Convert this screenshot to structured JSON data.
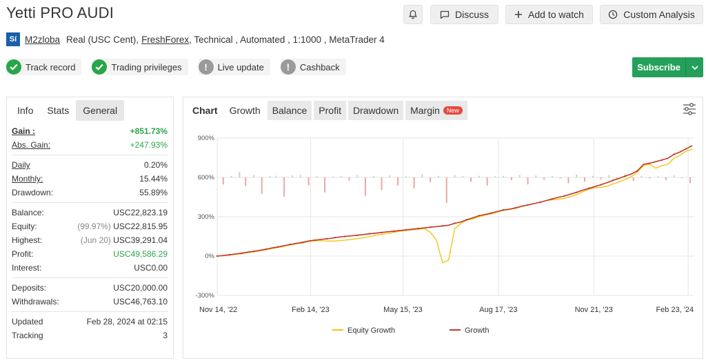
{
  "header": {
    "title": "Yetti PRO AUDI",
    "discuss_label": "Discuss",
    "watch_label": "Add to watch",
    "custom_label": "Custom Analysis",
    "icons": {
      "bell": "bell-icon",
      "discuss": "chat-icon",
      "watch": "plus-icon",
      "custom": "clock-icon"
    }
  },
  "account": {
    "avatar_text": "Sí",
    "user": "M2zloba",
    "type": "Real (USC Cent),",
    "broker": "FreshForex",
    "details": ", Technical , Automated , 1:1000 , MetaTrader 4"
  },
  "badges": [
    {
      "label": "Track record",
      "state": "ok"
    },
    {
      "label": "Trading privileges",
      "state": "ok"
    },
    {
      "label": "Live update",
      "state": "off"
    },
    {
      "label": "Cashback",
      "state": "off"
    }
  ],
  "subscribe_label": "Subscribe",
  "left_tabs": [
    "Info",
    "Stats",
    "General"
  ],
  "stats": {
    "gain": {
      "label": "Gain :",
      "value": "+851.73%"
    },
    "abs_gain": {
      "label": "Abs. Gain:",
      "value": "+247.93%"
    },
    "daily": {
      "label": "Daily",
      "value": "0.20%"
    },
    "monthly": {
      "label": "Monthly:",
      "value": "15.44%"
    },
    "drawdown": {
      "label": "Drawdown:",
      "value": "55.89%"
    },
    "balance": {
      "label": "Balance:",
      "value": "USC22,823.19"
    },
    "equity": {
      "label": "Equity:",
      "note": "(99.97%)",
      "value": "USC22,815.95"
    },
    "highest": {
      "label": "Highest:",
      "note": "(Jun 20)",
      "value": "USC39,291.04"
    },
    "profit": {
      "label": "Profit:",
      "value": "USC49,586.29"
    },
    "interest": {
      "label": "Interest:",
      "value": "USC0.00"
    },
    "deposits": {
      "label": "Deposits:",
      "value": "USC20,000.00"
    },
    "withdrawals": {
      "label": "Withdrawals:",
      "value": "USC46,763.10"
    },
    "updated": {
      "label": "Updated",
      "value": "Feb 28, 2024 at 02:15"
    },
    "tracking": {
      "label": "Tracking",
      "value": "3"
    }
  },
  "chart_tabs": {
    "chart": "Chart",
    "items": [
      "Growth",
      "Balance",
      "Profit",
      "Drawdown",
      "Margin"
    ],
    "new_badge": "New"
  },
  "chart_data": {
    "type": "line",
    "y_ticks": [
      "900%",
      "600%",
      "300%",
      "0%",
      "-300%"
    ],
    "ylim": [
      -300,
      900
    ],
    "x_ticks": [
      "Nov 14, '22",
      "Feb 14, '23",
      "May 15, '23",
      "Aug 17, '23",
      "Nov 21, '23",
      "Feb 23, '24"
    ],
    "grid": true,
    "legend_position": "bottom",
    "colors": {
      "equity": "#f2c511",
      "growth": "#c0392b",
      "bar_pos": "#b9dfb0",
      "bar_neg": "#e8a7a7"
    },
    "series": [
      {
        "name": "Equity Growth",
        "x": [
          0,
          6,
          12,
          18,
          24,
          30,
          36,
          42,
          48,
          54,
          60,
          66,
          72,
          78,
          84,
          90,
          96,
          102,
          108,
          113,
          116,
          120,
          126,
          132,
          138,
          144,
          150,
          156,
          162,
          168,
          174,
          180,
          186,
          192,
          198,
          204,
          210,
          216,
          222,
          228,
          234,
          240,
          246,
          252,
          258,
          264,
          270,
          276,
          282,
          288,
          294,
          300,
          306,
          312,
          318,
          324,
          330,
          336,
          342,
          348,
          354,
          360,
          366,
          372,
          378,
          384,
          390,
          396,
          402,
          408,
          414,
          420,
          426,
          432,
          438,
          444,
          450,
          456,
          462,
          468
        ],
        "y": [
          0,
          3,
          8,
          13,
          18,
          26,
          32,
          40,
          48,
          58,
          66,
          75,
          85,
          93,
          100,
          111,
          117,
          118,
          115,
          115,
          114,
          118,
          122,
          127,
          133,
          140,
          148,
          160,
          165,
          172,
          180,
          190,
          196,
          200,
          205,
          210,
          182,
          122,
          -50,
          -30,
          208,
          250,
          274,
          283,
          300,
          312,
          322,
          336,
          349,
          354,
          364,
          378,
          388,
          399,
          410,
          423,
          428,
          434,
          440,
          452,
          468,
          490,
          510,
          520,
          525,
          532,
          550,
          567,
          585,
          605,
          640,
          690,
          700,
          670,
          690,
          700,
          745,
          770,
          800,
          815
        ]
      },
      {
        "name": "Growth",
        "x": [
          0,
          6,
          12,
          18,
          24,
          30,
          36,
          42,
          48,
          54,
          60,
          66,
          72,
          78,
          84,
          90,
          96,
          102,
          108,
          113,
          116,
          120,
          126,
          132,
          138,
          144,
          150,
          156,
          162,
          168,
          174,
          180,
          186,
          192,
          198,
          204,
          210,
          216,
          222,
          228,
          234,
          240,
          246,
          252,
          258,
          264,
          270,
          276,
          282,
          288,
          294,
          300,
          306,
          312,
          318,
          324,
          330,
          336,
          342,
          348,
          354,
          360,
          366,
          372,
          378,
          384,
          390,
          396,
          402,
          408,
          414,
          420,
          426,
          432,
          438,
          444,
          450,
          456,
          462,
          468
        ],
        "y": [
          0,
          4,
          10,
          16,
          22,
          30,
          36,
          44,
          52,
          62,
          70,
          79,
          89,
          97,
          104,
          115,
          121,
          127,
          132,
          137,
          141,
          145,
          150,
          154,
          159,
          164,
          170,
          175,
          180,
          185,
          190,
          195,
          200,
          205,
          210,
          215,
          220,
          225,
          230,
          235,
          250,
          260,
          278,
          292,
          308,
          318,
          328,
          340,
          352,
          358,
          368,
          380,
          390,
          400,
          410,
          423,
          436,
          448,
          458,
          472,
          486,
          502,
          516,
          530,
          544,
          560,
          578,
          592,
          610,
          626,
          650,
          700,
          708,
          720,
          732,
          746,
          776,
          794,
          818,
          842
        ]
      }
    ],
    "bars": {
      "x": [
        6,
        14,
        22,
        28,
        36,
        44,
        52,
        58,
        66,
        74,
        82,
        90,
        98,
        106,
        114,
        122,
        130,
        138,
        146,
        154,
        162,
        170,
        178,
        186,
        194,
        202,
        210,
        218,
        226,
        234,
        242,
        250,
        258,
        266,
        274,
        282,
        290,
        298,
        306,
        314,
        322,
        330,
        338,
        346,
        354,
        362,
        370,
        378,
        386,
        394,
        402,
        410,
        418,
        426,
        434,
        442,
        450,
        458,
        466
      ],
      "y": [
        -180,
        40,
        140,
        -220,
        60,
        -420,
        30,
        40,
        -490,
        50,
        60,
        -200,
        30,
        -380,
        20,
        40,
        -80,
        60,
        -470,
        40,
        -320,
        50,
        -210,
        30,
        -280,
        80,
        -120,
        40,
        -650,
        60,
        30,
        -110,
        40,
        -210,
        30,
        40,
        -70,
        60,
        -180,
        50,
        -60,
        40,
        -30,
        -150,
        70,
        -110,
        40,
        -50,
        60,
        -40,
        80,
        -90,
        40,
        -30,
        30,
        -70,
        50,
        -20,
        -150
      ]
    }
  },
  "legend": {
    "equity": "Equity Growth",
    "growth": "Growth"
  }
}
